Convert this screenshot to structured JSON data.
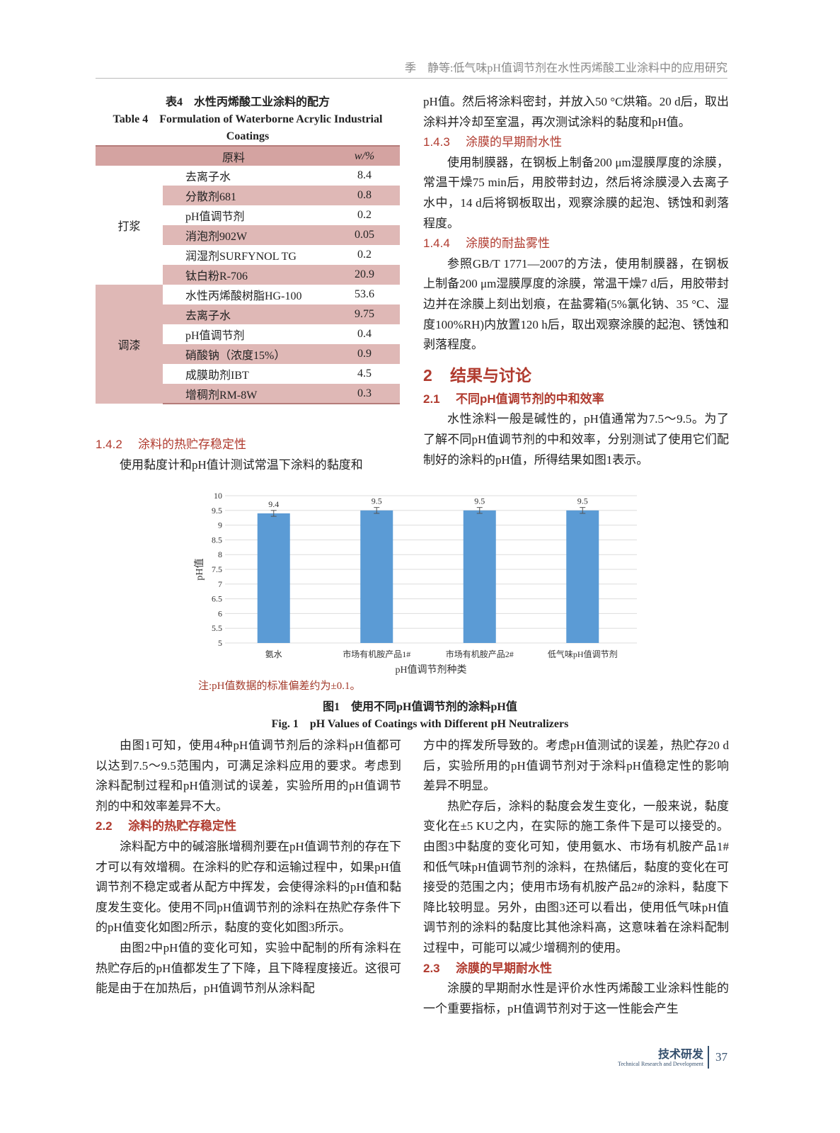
{
  "header": {
    "running_title": "季　静等:低气味pH值调节剂在水性丙烯酸工业涂料中的应用研究"
  },
  "table4": {
    "caption_cn": "表4　水性丙烯酸工业涂料的配方",
    "caption_en": "Table 4　Formulation of Waterborne Acrylic Industrial Coatings",
    "headers": [
      "原料",
      "w/%"
    ],
    "groups": [
      {
        "name": "打浆",
        "rows": [
          [
            "去离子水",
            "8.4"
          ],
          [
            "分散剂681",
            "0.8"
          ],
          [
            "pH值调节剂",
            "0.2"
          ],
          [
            "消泡剂902W",
            "0.05"
          ],
          [
            "润湿剂SURFYNOL TG",
            "0.2"
          ],
          [
            "钛白粉R-706",
            "20.9"
          ]
        ]
      },
      {
        "name": "调漆",
        "rows": [
          [
            "水性丙烯酸树脂HG-100",
            "53.6"
          ],
          [
            "去离子水",
            "9.75"
          ],
          [
            "pH值调节剂",
            "0.4"
          ],
          [
            "硝酸钠（浓度15%）",
            "0.9"
          ],
          [
            "成膜助剂IBT",
            "4.5"
          ],
          [
            "增稠剂RM-8W",
            "0.3"
          ]
        ]
      }
    ]
  },
  "left_top": {
    "h_num": "1.4.2",
    "h_text": "涂料的热贮存稳定性",
    "p": "使用黏度计和pH值计测试常温下涂料的黏度和"
  },
  "right_top": {
    "p0": "pH值。然后将涂料密封，并放入50 °C烘箱。20 d后，取出涂料并冷却至室温，再次测试涂料的黏度和pH值。",
    "h1_num": "1.4.3",
    "h1_text": "涂膜的早期耐水性",
    "p1": "使用制膜器，在钢板上制备200 μm湿膜厚度的涂膜，常温干燥75 min后，用胶带封边，然后将涂膜浸入去离子水中，14 d后将钢板取出，观察涂膜的起泡、锈蚀和剥落程度。",
    "h2_num": "1.4.4",
    "h2_text": "涂膜的耐盐雾性",
    "p2": "参照GB/T 1771—2007的方法，使用制膜器，在钢板上制备200 μm湿膜厚度的涂膜，常温干燥7 d后，用胶带封边并在涂膜上刻出划痕，在盐雾箱(5%氯化钠、35 °C、湿度100%RH)内放置120 h后，取出观察涂膜的起泡、锈蚀和剥落程度。",
    "s2_num": "2",
    "s2_text": "结果与讨论",
    "s21_num": "2.1",
    "s21_text": "不同pH值调节剂的中和效率",
    "p3": "水性涂料一般是碱性的，pH值通常为7.5～9.5。为了了解不同pH值调节剂的中和效率，分别测试了使用它们配制好的涂料的pH值，所得结果如图1表示。"
  },
  "chart_data": {
    "type": "bar",
    "categories": [
      "氨水",
      "市场有机胺产品1#",
      "市场有机胺产品2#",
      "低气味pH值调节剂"
    ],
    "values": [
      9.4,
      9.5,
      9.5,
      9.5
    ],
    "error": 0.1,
    "data_labels": [
      "9.4",
      "9.5",
      "9.5",
      "9.5"
    ],
    "xlabel": "pH值调节剂种类",
    "ylabel": "pH值",
    "ylim": [
      5,
      10
    ],
    "yticks": [
      "5",
      "5.5",
      "6",
      "6.5",
      "7",
      "7.5",
      "8",
      "8.5",
      "9",
      "9.5",
      "10"
    ],
    "grid": true,
    "bar_color": "#5b9bd5"
  },
  "figure1": {
    "note": "注:pH值数据的标准偏差约为±0.1。",
    "caption_cn": "图1　使用不同pH值调节剂的涂料pH值",
    "caption_en": "Fig. 1　pH Values of Coatings with Different pH Neutralizers"
  },
  "left_bottom": {
    "p1": "由图1可知，使用4种pH值调节剂后的涂料pH值都可以达到7.5～9.5范围内，可满足涂料应用的要求。考虑到涂料配制过程和pH值测试的误差，实验所用的pH值调节剂的中和效率差异不大。",
    "h_num": "2.2",
    "h_text": "涂料的热贮存稳定性",
    "p2": "涂料配方中的碱溶胀增稠剂要在pH值调节剂的存在下才可以有效增稠。在涂料的贮存和运输过程中，如果pH值调节剂不稳定或者从配方中挥发，会使得涂料的pH值和黏度发生变化。使用不同pH值调节剂的涂料在热贮存条件下的pH值变化如图2所示，黏度的变化如图3所示。",
    "p3": "由图2中pH值的变化可知，实验中配制的所有涂料在热贮存后的pH值都发生了下降，且下降程度接近。这很可能是由于在加热后，pH值调节剂从涂料配"
  },
  "right_bottom": {
    "p0": "方中的挥发所导致的。考虑pH值测试的误差，热贮存20 d后，实验所用的pH值调节剂对于涂料pH值稳定性的影响差异不明显。",
    "p1": "热贮存后，涂料的黏度会发生变化，一般来说，黏度变化在±5 KU之内，在实际的施工条件下是可以接受的。由图3中黏度的变化可知，使用氨水、市场有机胺产品1#和低气味pH值调节剂的涂料，在热储后，黏度的变化在可接受的范围之内；使用市场有机胺产品2#的涂料，黏度下降比较明显。另外，由图3还可以看出，使用低气味pH值调节剂的涂料的黏度比其他涂料高，这意味着在涂料配制过程中，可能可以减少增稠剂的使用。",
    "h_num": "2.3",
    "h_text": "涂膜的早期耐水性",
    "p2": "涂膜的早期耐水性是评价水性丙烯酸工业涂料性能的一个重要指标，pH值调节剂对于这一性能会产生"
  },
  "footer": {
    "section_cn": "技术研发",
    "section_en": "Technical Research and Development",
    "page": "37"
  }
}
